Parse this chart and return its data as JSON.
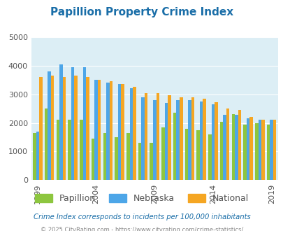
{
  "title": "Papillion Property Crime Index",
  "title_color": "#1a6ea8",
  "subtitle": "Crime Index corresponds to incidents per 100,000 inhabitants",
  "footer": "© 2025 CityRating.com - https://www.cityrating.com/crime-statistics/",
  "years": [
    1999,
    2000,
    2001,
    2002,
    2003,
    2004,
    2005,
    2006,
    2007,
    2008,
    2009,
    2010,
    2011,
    2012,
    2013,
    2014,
    2015,
    2016,
    2017,
    2018,
    2019
  ],
  "xtick_years": [
    1999,
    2004,
    2009,
    2014,
    2019
  ],
  "papillion": [
    1650,
    2500,
    2100,
    2100,
    2100,
    1450,
    1650,
    1500,
    1650,
    1300,
    1300,
    1850,
    2350,
    1800,
    1750,
    1600,
    2050,
    2300,
    1950,
    2000,
    1950
  ],
  "nebraska": [
    1700,
    3800,
    4050,
    3950,
    3950,
    3500,
    3400,
    3350,
    3200,
    2900,
    2800,
    2700,
    2800,
    2800,
    2750,
    2650,
    2280,
    2280,
    2150,
    2100,
    2100
  ],
  "national": [
    3600,
    3650,
    3600,
    3650,
    3600,
    3500,
    3450,
    3350,
    3250,
    3050,
    3050,
    2970,
    2900,
    2900,
    2850,
    2720,
    2500,
    2460,
    2200,
    2100,
    2100
  ],
  "papillion_color": "#8dc63f",
  "nebraska_color": "#4da6e8",
  "national_color": "#f5a623",
  "bg_color": "#dceef5",
  "ylim": [
    0,
    5000
  ],
  "yticks": [
    0,
    1000,
    2000,
    3000,
    4000,
    5000
  ],
  "bar_width": 0.27,
  "legend_labels": [
    "Papillion",
    "Nebraska",
    "National"
  ],
  "legend_colors": [
    "#8dc63f",
    "#4da6e8",
    "#f5a623"
  ],
  "subtitle_color": "#1a6ea8",
  "footer_color": "#888888"
}
